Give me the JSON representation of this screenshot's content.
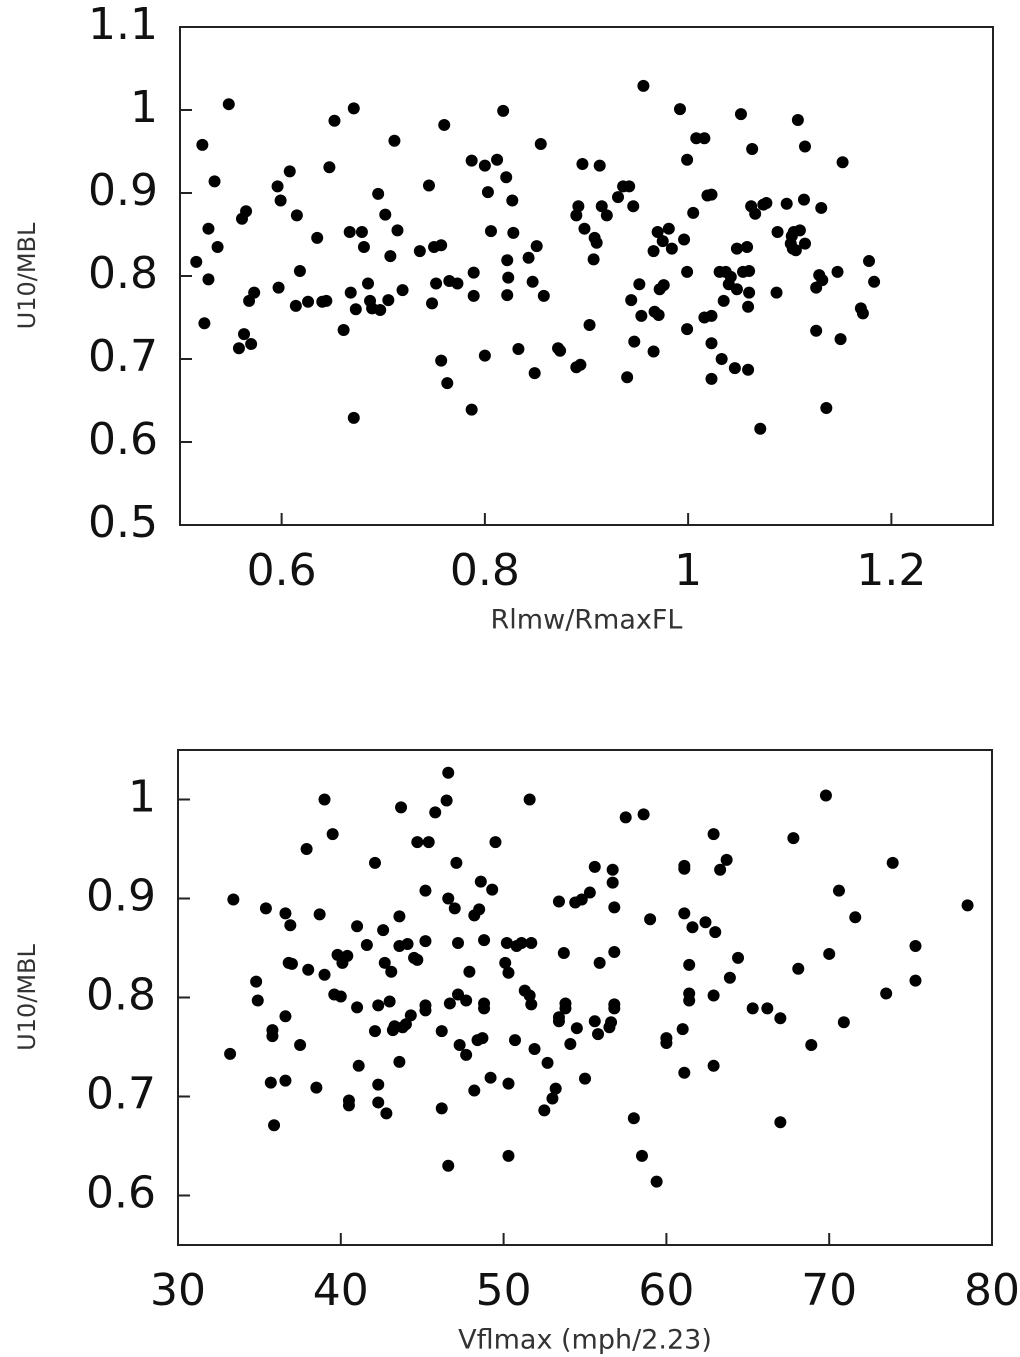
{
  "chart_data": [
    {
      "type": "scatter",
      "xlabel": "Rlmw/RmaxFL",
      "ylabel": "U10/MBL",
      "color": "#000000",
      "xlim": [
        0.5,
        1.3
      ],
      "ylim": [
        0.5,
        1.1
      ],
      "xticks": [
        0.6,
        0.8,
        1,
        1.2
      ],
      "yticks": [
        0.5,
        0.6,
        0.7,
        0.8,
        0.9,
        1,
        1.1
      ],
      "x": [
        0.516,
        0.522,
        0.524,
        0.528,
        0.528,
        0.534,
        0.537,
        0.548,
        0.558,
        0.561,
        0.563,
        0.565,
        0.568,
        0.57,
        0.573,
        0.596,
        0.597,
        0.599,
        0.608,
        0.615,
        0.614,
        0.618,
        0.626,
        0.635,
        0.64,
        0.644,
        0.647,
        0.652,
        0.661,
        0.667,
        0.668,
        0.671,
        0.671,
        0.673,
        0.679,
        0.681,
        0.685,
        0.687,
        0.689,
        0.695,
        0.697,
        0.702,
        0.705,
        0.707,
        0.711,
        0.714,
        0.719,
        0.736,
        0.745,
        0.75,
        0.748,
        0.752,
        0.757,
        0.757,
        0.76,
        0.763,
        0.765,
        0.773,
        0.787,
        0.787,
        0.789,
        0.789,
        0.8,
        0.8,
        0.803,
        0.806,
        0.812,
        0.818,
        0.821,
        0.822,
        0.823,
        0.822,
        0.827,
        0.828,
        0.833,
        0.843,
        0.847,
        0.849,
        0.851,
        0.855,
        0.858,
        0.872,
        0.874,
        0.89,
        0.89,
        0.892,
        0.894,
        0.896,
        0.898,
        0.903,
        0.907,
        0.908,
        0.91,
        0.913,
        0.915,
        0.92,
        0.931,
        0.936,
        0.942,
        0.94,
        0.944,
        0.946,
        0.947,
        0.952,
        0.954,
        0.956,
        0.966,
        0.966,
        0.967,
        0.97,
        0.971,
        0.972,
        0.975,
        0.976,
        0.981,
        0.984,
        0.992,
        0.996,
        0.999,
        0.999,
        0.999,
        1.005,
        1.008,
        1.016,
        1.016,
        1.019,
        1.023,
        1.023,
        1.023,
        1.023,
        1.031,
        1.033,
        1.035,
        1.037,
        1.04,
        1.042,
        1.046,
        1.048,
        1.048,
        1.052,
        1.054,
        1.058,
        1.059,
        1.059,
        1.06,
        1.06,
        1.062,
        1.063,
        1.066,
        1.071,
        1.074,
        1.077,
        1.088,
        1.087,
        1.097,
        1.101,
        1.102,
        1.104,
        1.103,
        1.106,
        1.108,
        1.11,
        1.114,
        1.115,
        1.115,
        1.126,
        1.126,
        1.129,
        1.131,
        1.132,
        1.136,
        1.147,
        1.15,
        1.152,
        1.172,
        1.178,
        1.183,
        1.17
      ],
      "values": [
        0.817,
        0.958,
        0.743,
        0.857,
        0.796,
        0.914,
        0.835,
        1.007,
        0.713,
        0.869,
        0.73,
        0.878,
        0.77,
        0.718,
        0.78,
        0.908,
        0.786,
        0.891,
        0.926,
        0.873,
        0.764,
        0.806,
        0.769,
        0.846,
        0.769,
        0.77,
        0.931,
        0.987,
        0.735,
        0.853,
        0.78,
        1.002,
        0.629,
        0.76,
        0.853,
        0.835,
        0.791,
        0.77,
        0.761,
        0.899,
        0.759,
        0.874,
        0.771,
        0.824,
        0.963,
        0.855,
        0.783,
        0.83,
        0.909,
        0.835,
        0.767,
        0.791,
        0.837,
        0.698,
        0.982,
        0.671,
        0.794,
        0.791,
        0.939,
        0.639,
        0.804,
        0.776,
        0.933,
        0.704,
        0.901,
        0.854,
        0.94,
        0.999,
        0.919,
        0.819,
        0.798,
        0.777,
        0.891,
        0.852,
        0.712,
        0.822,
        0.793,
        0.683,
        0.836,
        0.959,
        0.776,
        0.713,
        0.71,
        0.69,
        0.873,
        0.884,
        0.693,
        0.935,
        0.857,
        0.741,
        0.82,
        0.846,
        0.84,
        0.933,
        0.884,
        0.873,
        0.895,
        0.908,
        0.908,
        0.678,
        0.771,
        0.884,
        0.721,
        0.79,
        0.752,
        1.029,
        0.83,
        0.709,
        0.757,
        0.853,
        0.753,
        0.784,
        0.842,
        0.789,
        0.857,
        0.833,
        1.001,
        0.844,
        0.94,
        0.805,
        0.736,
        0.876,
        0.966,
        0.966,
        0.75,
        0.897,
        0.898,
        0.752,
        0.719,
        0.676,
        0.805,
        0.7,
        0.77,
        0.805,
        0.79,
        0.799,
        0.689,
        0.833,
        0.784,
        0.995,
        0.805,
        0.835,
        0.687,
        0.763,
        0.78,
        0.806,
        0.884,
        0.953,
        0.875,
        0.616,
        0.886,
        0.888,
        0.853,
        0.78,
        0.887,
        0.839,
        0.848,
        0.853,
        0.833,
        0.831,
        0.988,
        0.855,
        0.892,
        0.956,
        0.839,
        0.786,
        0.734,
        0.801,
        0.882,
        0.795,
        0.641,
        0.805,
        0.724,
        0.937,
        0.755,
        0.818,
        0.793,
        0.761
      ]
    },
    {
      "type": "scatter",
      "xlabel": "Vflmax (mph/2.23)",
      "ylabel": "U10/MBL",
      "color": "#000000",
      "xlim": [
        30,
        80
      ],
      "ylim": [
        0.55,
        1.05
      ],
      "xticks": [
        30,
        40,
        50,
        60,
        70,
        80
      ],
      "yticks": [
        0.6,
        0.7,
        0.8,
        0.9,
        1
      ],
      "x": [
        33.2,
        33.4,
        34.8,
        34.9,
        35.4,
        35.7,
        35.8,
        35.8,
        35.9,
        36.6,
        36.6,
        36.6,
        36.8,
        36.9,
        37,
        37.5,
        37.9,
        38,
        38.5,
        38.7,
        39,
        39,
        39.5,
        39.6,
        39.8,
        40,
        40.1,
        40.4,
        40.5,
        40.5,
        41,
        41,
        41.1,
        41.6,
        42.1,
        42.1,
        42.3,
        42.3,
        42.3,
        42.6,
        42.7,
        42.8,
        43,
        43.1,
        43.2,
        43.3,
        43.6,
        43.6,
        43.7,
        43.6,
        43.8,
        44,
        44.1,
        44.3,
        44.5,
        44.7,
        44.7,
        45.2,
        45.2,
        45.2,
        45.2,
        45.4,
        45.8,
        46.2,
        46.2,
        46.5,
        46.6,
        46.6,
        46.6,
        46.7,
        47,
        47.1,
        47.2,
        47.2,
        47.3,
        47.7,
        47.7,
        47.9,
        48.2,
        48.2,
        48.4,
        48.5,
        48.6,
        48.8,
        48.8,
        48.8,
        48.7,
        49.2,
        49.3,
        49.5,
        50.1,
        50.2,
        50.3,
        50.3,
        50.3,
        50.7,
        50.8,
        51.1,
        51.3,
        51.6,
        51.6,
        51.7,
        51.7,
        51.9,
        52.5,
        52.7,
        53,
        53.2,
        53.4,
        53.4,
        53.4,
        53.7,
        53.8,
        53.8,
        54.1,
        54.4,
        54.5,
        54.8,
        55,
        55.3,
        55.6,
        55.6,
        55.8,
        55.9,
        56.5,
        56.6,
        56.7,
        56.7,
        56.8,
        56.8,
        56.8,
        56.8,
        57.5,
        58,
        58.5,
        58.6,
        59,
        59.4,
        60,
        60,
        61,
        61.1,
        61.1,
        61.1,
        61.1,
        61.4,
        61.4,
        61.4,
        61.6,
        62.4,
        62.9,
        62.9,
        62.9,
        63,
        63.3,
        63.7,
        63.9,
        64.4,
        65.3,
        66.2,
        67,
        67,
        67.8,
        68.1,
        68.9,
        69.8,
        70,
        70.6,
        70.9,
        71.6,
        73.5,
        73.9,
        75.3,
        75.3,
        78.5
      ],
      "values": [
        0.743,
        0.899,
        0.816,
        0.797,
        0.89,
        0.714,
        0.767,
        0.761,
        0.671,
        0.781,
        0.885,
        0.716,
        0.835,
        0.873,
        0.834,
        0.752,
        0.95,
        0.828,
        0.709,
        0.884,
        1,
        0.823,
        0.965,
        0.803,
        0.843,
        0.801,
        0.835,
        0.842,
        0.696,
        0.691,
        0.872,
        0.79,
        0.731,
        0.853,
        0.936,
        0.766,
        0.792,
        0.712,
        0.694,
        0.868,
        0.835,
        0.683,
        0.796,
        0.826,
        0.767,
        0.771,
        0.882,
        0.735,
        0.992,
        0.852,
        0.77,
        0.773,
        0.854,
        0.782,
        0.84,
        0.957,
        0.838,
        0.792,
        0.787,
        0.908,
        0.857,
        0.957,
        0.987,
        0.766,
        0.688,
        0.999,
        1.027,
        0.9,
        0.63,
        0.794,
        0.89,
        0.936,
        0.855,
        0.803,
        0.752,
        0.742,
        0.797,
        0.826,
        0.706,
        0.883,
        0.757,
        0.889,
        0.917,
        0.858,
        0.794,
        0.789,
        0.759,
        0.719,
        0.909,
        0.957,
        0.835,
        0.855,
        0.713,
        0.64,
        0.825,
        0.757,
        0.852,
        0.855,
        0.807,
        1,
        0.802,
        0.855,
        0.793,
        0.748,
        0.686,
        0.734,
        0.698,
        0.708,
        0.897,
        0.78,
        0.776,
        0.845,
        0.794,
        0.789,
        0.753,
        0.896,
        0.769,
        0.899,
        0.718,
        0.906,
        0.776,
        0.932,
        0.763,
        0.835,
        0.77,
        0.775,
        0.929,
        0.916,
        0.891,
        0.846,
        0.793,
        0.789,
        0.982,
        0.678,
        0.64,
        0.985,
        0.879,
        0.614,
        0.759,
        0.754,
        0.768,
        0.724,
        0.933,
        0.93,
        0.885,
        0.833,
        0.804,
        0.797,
        0.871,
        0.876,
        0.731,
        0.802,
        0.965,
        0.866,
        0.929,
        0.939,
        0.82,
        0.84,
        0.789,
        0.789,
        0.674,
        0.779,
        0.961,
        0.829,
        0.752,
        1.004,
        0.844,
        0.908,
        0.775,
        0.881,
        0.804,
        0.936,
        0.852,
        0.817,
        0.893
      ]
    }
  ]
}
